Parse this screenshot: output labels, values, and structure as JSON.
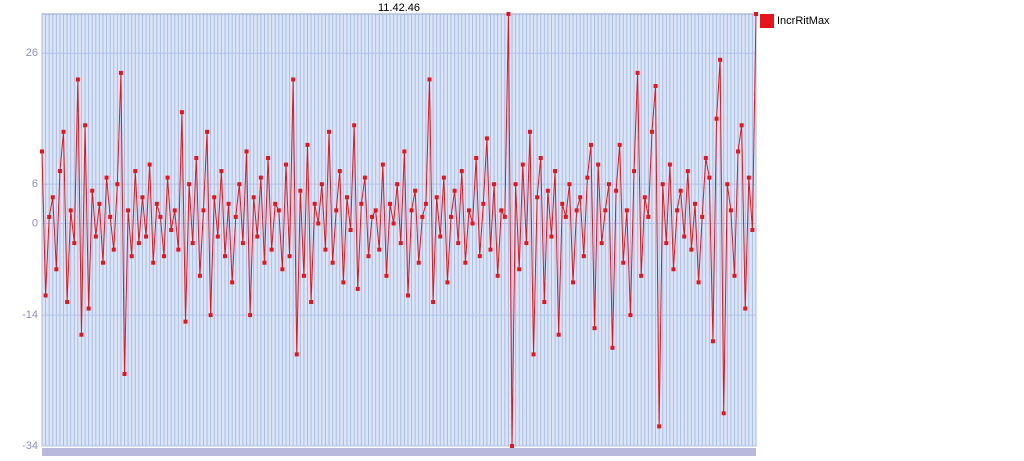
{
  "chart_data": {
    "type": "line",
    "title": "11.42.46",
    "series": [
      {
        "name": "IncrRitMax",
        "color": "#e8141c",
        "values": [
          11,
          -11,
          1,
          4,
          -7,
          8,
          14,
          -12,
          2,
          -3,
          22,
          -17,
          15,
          -13,
          5,
          -2,
          3,
          -6,
          7,
          1,
          -4,
          6,
          23,
          -23,
          2,
          -5,
          8,
          -3,
          4,
          -2,
          9,
          -6,
          3,
          1,
          -5,
          7,
          -1,
          2,
          -4,
          17,
          -15,
          6,
          -3,
          10,
          -8,
          2,
          14,
          -14,
          4,
          -2,
          8,
          -5,
          3,
          -9,
          1,
          6,
          -3,
          11,
          -14,
          4,
          -2,
          7,
          -6,
          10,
          -4,
          3,
          2,
          -7,
          9,
          -5,
          22,
          -20,
          5,
          -8,
          12,
          -12,
          3,
          0,
          6,
          -4,
          14,
          -6,
          2,
          8,
          -9,
          4,
          -1,
          15,
          -10,
          3,
          7,
          -5,
          1,
          2,
          -4,
          9,
          -8,
          3,
          0,
          6,
          -3,
          11,
          -11,
          2,
          5,
          -6,
          1,
          3,
          22,
          -12,
          4,
          -2,
          7,
          -9,
          1,
          5,
          -3,
          8,
          -6,
          2,
          0,
          10,
          -5,
          3,
          13,
          -4,
          6,
          -8,
          2,
          1,
          32,
          -34,
          6,
          -7,
          9,
          -3,
          14,
          -20,
          4,
          10,
          -12,
          5,
          -2,
          8,
          -17,
          3,
          1,
          6,
          -9,
          2,
          4,
          -5,
          7,
          12,
          -16,
          9,
          -3,
          2,
          6,
          -19,
          5,
          12,
          -6,
          2,
          -14,
          8,
          23,
          -8,
          4,
          1,
          14,
          21,
          -31,
          6,
          -3,
          9,
          -7,
          2,
          5,
          -2,
          8,
          -4,
          3,
          -9,
          1,
          10,
          7,
          -18,
          16,
          25,
          -29,
          6,
          2,
          -8,
          11,
          15,
          -13,
          7,
          -1,
          32
        ]
      }
    ],
    "ylim": [
      -34,
      32
    ],
    "yticks": [
      -34,
      -14,
      0,
      6,
      26
    ],
    "grid": true,
    "legend": "right"
  }
}
